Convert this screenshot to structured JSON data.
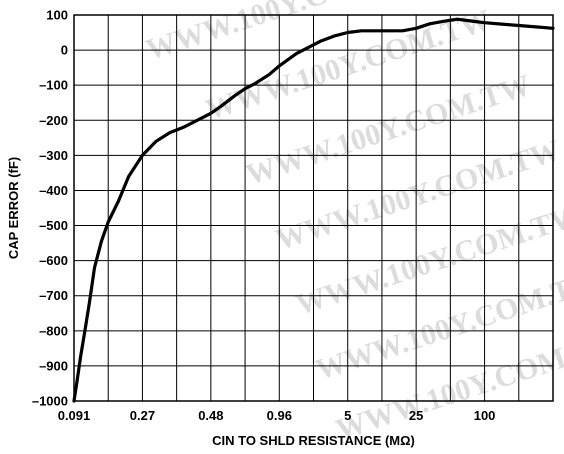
{
  "chart_data": {
    "type": "line",
    "xlabel": "CIN TO SHLD RESISTANCE (MΩ)",
    "ylabel": "CAP ERROR (fF)",
    "ylim": [
      -1000,
      100
    ],
    "yticks": [
      100,
      0,
      -100,
      -200,
      -300,
      -400,
      -500,
      -600,
      -700,
      -800,
      -900,
      -1000
    ],
    "ytick_labels": [
      "100",
      "0",
      "–100",
      "–200",
      "–300",
      "–400",
      "–500",
      "–600",
      "–700",
      "–800",
      "–900",
      "–1000"
    ],
    "x_categories": [
      "0.091",
      "0.27",
      "0.48",
      "0.96",
      "5",
      "25",
      "100"
    ],
    "x_grid_divisions": 14,
    "grid": true,
    "watermark": "WWW.100Y.COM.TW",
    "series": [
      {
        "x": [
          0.0,
          0.08,
          0.2,
          0.32,
          0.45,
          0.6,
          0.8,
          1.0,
          1.3,
          1.6,
          2.0,
          2.4,
          2.8,
          3.2,
          3.6,
          4.0,
          4.3,
          4.7,
          5.0,
          5.3,
          5.7,
          6.0,
          6.5,
          6.9,
          7.2,
          7.6,
          8.0,
          8.4,
          8.8,
          9.2,
          9.6,
          10.0,
          10.4,
          10.8,
          11.2,
          11.6,
          12.0,
          12.5,
          13.0,
          13.5,
          14.0
        ],
        "y": [
          -1000,
          -950,
          -870,
          -800,
          -720,
          -620,
          -545,
          -490,
          -430,
          -360,
          -300,
          -260,
          -235,
          -220,
          -200,
          -180,
          -160,
          -130,
          -110,
          -95,
          -70,
          -45,
          -10,
          10,
          25,
          40,
          50,
          55,
          55,
          55,
          55,
          62,
          75,
          82,
          88,
          83,
          78,
          74,
          70,
          66,
          62
        ]
      }
    ]
  }
}
